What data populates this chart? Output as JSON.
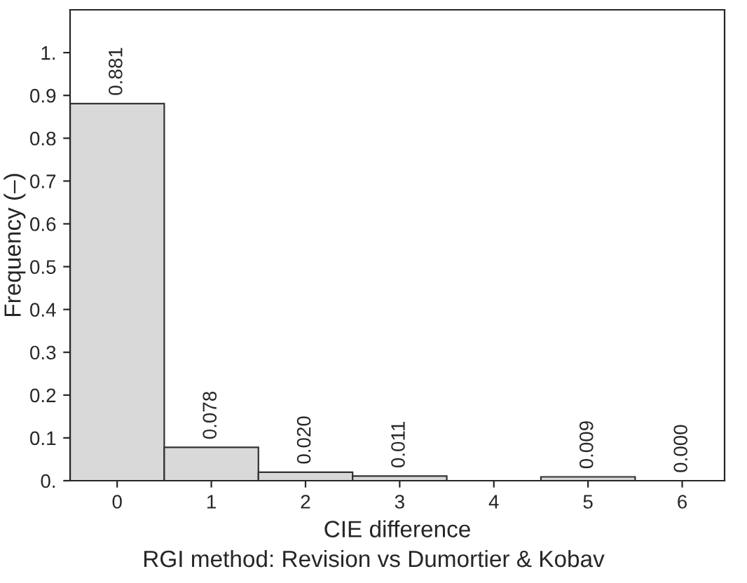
{
  "chart_data": {
    "type": "bar",
    "xlabel": "CIE difference",
    "ylabel": "Frequency (–)",
    "categories": [
      "0",
      "1",
      "2",
      "3",
      "4",
      "5",
      "6"
    ],
    "values": [
      0.881,
      0.078,
      0.02,
      0.011,
      null,
      0.009,
      0.0
    ],
    "value_labels": [
      "0.881",
      "0.078",
      "0.020",
      "0.011",
      null,
      "0.009",
      "0.000"
    ],
    "color": "#d9d9d9",
    "ylim": [
      0,
      1.1
    ],
    "yticks": [
      {
        "value": 0,
        "label": "0."
      },
      0.1,
      0.2,
      0.3,
      0.4,
      0.5,
      0.6,
      0.7,
      0.8,
      0.9,
      {
        "value": 1,
        "label": "1."
      }
    ],
    "grid": false,
    "legend": false,
    "annotations": [
      "RGI method: Revision vs Dumortier & Kobav"
    ]
  }
}
